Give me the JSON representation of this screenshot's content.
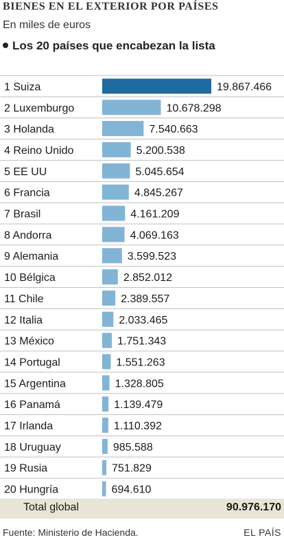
{
  "header": {
    "title": "BIENES EN EL EXTERIOR POR PAÍSES",
    "subtitle": "En miles de euros",
    "section": "Los 20 países que encabezan la lista"
  },
  "colors": {
    "highlight": "#1f6aa0",
    "bar": "#82b4d6",
    "row_line": "#bfbfbf",
    "total_bg": "#e8e4d6"
  },
  "chart_data": {
    "type": "bar",
    "orientation": "horizontal",
    "categories": [
      "1 Suiza",
      "2 Luxemburgo",
      "3 Holanda",
      "4 Reino Unido",
      "5 EE UU",
      "6 Francia",
      "7 Brasil",
      "8 Andorra",
      "9 Alemania",
      "10 Bélgica",
      "11 Chile",
      "12 Italia",
      "13 México",
      "14 Portugal",
      "15 Argentina",
      "16 Panamá",
      "17 Irlanda",
      "18 Uruguay",
      "19 Rusia",
      "20 Hungría"
    ],
    "values": [
      19867466,
      10678298,
      7540663,
      5200538,
      5045654,
      4845267,
      4161209,
      4069163,
      3599523,
      2852012,
      2389557,
      2033465,
      1751343,
      1551263,
      1328805,
      1139479,
      1110392,
      985588,
      751829,
      694610
    ],
    "value_labels": [
      "19.867.466",
      "10.678.298",
      "7.540.663",
      "5.200.538",
      "5.045.654",
      "4.845.267",
      "4.161.209",
      "4.069.163",
      "3.599.523",
      "2.852.012",
      "2.389.557",
      "2.033.465",
      "1.751.343",
      "1.551.263",
      "1.328.805",
      "1.139.479",
      "1.110.392",
      "985.588",
      "751.829",
      "694.610"
    ],
    "title": "BIENES EN EL EXTERIOR POR PAÍSES",
    "xlabel": "",
    "ylabel": "",
    "grid": false
  },
  "total": {
    "label": "Total global",
    "value": "90.976.170"
  },
  "footer": {
    "source": "Fuente: Ministerio de Hacienda.",
    "brand": "EL PAÍS"
  }
}
